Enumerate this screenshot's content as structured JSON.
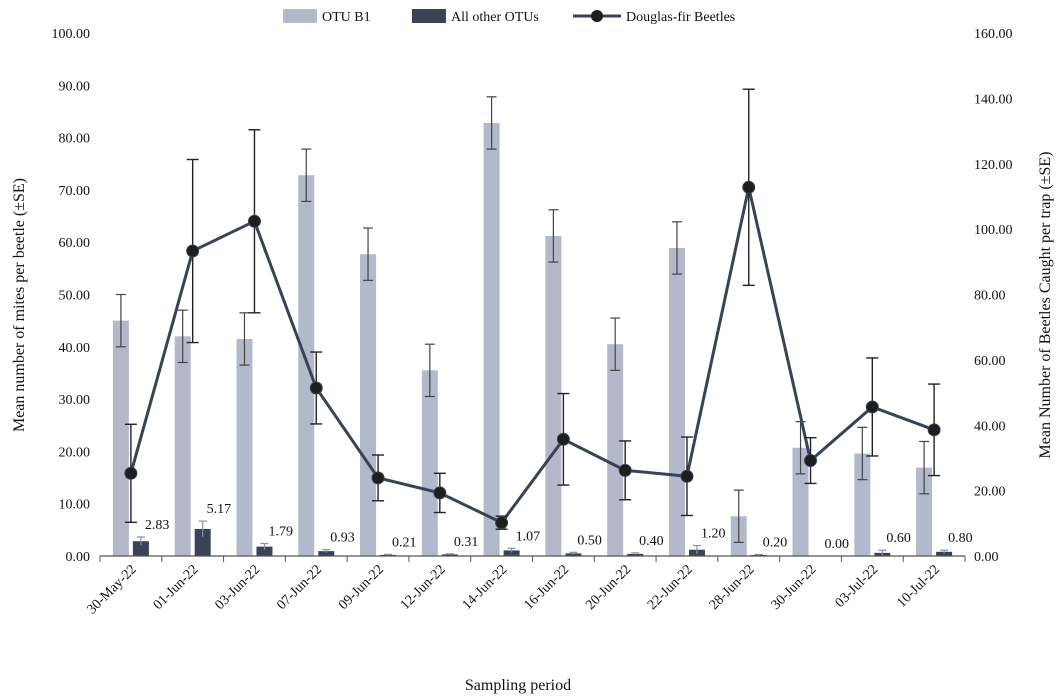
{
  "chart_data": {
    "type": "bar",
    "categories": [
      "30-May-22",
      "01-Jun-22",
      "03-Jun-22",
      "07-Jun-22",
      "09-Jun-22",
      "12-Jun-22",
      "14-Jun-22",
      "16-Jun-22",
      "20-Jun-22",
      "22-Jun-22",
      "28-Jun-22",
      "30-Jun-22",
      "03-Jul-22",
      "10-Jul-22"
    ],
    "xlabel": "Sampling period",
    "ylabel": "Mean number of mites per beetle (±SE)",
    "y2label": "Mean Number of Beetles Caught per trap (±SE)",
    "ylim": [
      0,
      100
    ],
    "y2lim": [
      0,
      160
    ],
    "yticks": [
      "0.00",
      "10.00",
      "20.00",
      "30.00",
      "40.00",
      "50.00",
      "60.00",
      "70.00",
      "80.00",
      "90.00",
      "100.00"
    ],
    "y2ticks": [
      "0.00",
      "20.00",
      "40.00",
      "60.00",
      "80.00",
      "100.00",
      "120.00",
      "140.00",
      "160.00"
    ],
    "grid": false,
    "legend_position": "top",
    "series": [
      {
        "name": "OTU B1",
        "type": "bar",
        "axis": "left",
        "color": "#b3b9cb",
        "values": [
          45.0,
          42.0,
          41.5,
          72.8,
          57.7,
          35.5,
          82.8,
          61.2,
          40.5,
          58.9,
          7.6,
          20.7,
          19.6,
          16.9
        ],
        "error": [
          5.0,
          5.0,
          5.0,
          5.0,
          5.0,
          5.0,
          5.0,
          5.0,
          5.0,
          5.0,
          5.0,
          5.0,
          5.0,
          5.0
        ]
      },
      {
        "name": "All other OTUs",
        "type": "bar",
        "axis": "left",
        "color": "#3a4255",
        "values": [
          2.83,
          5.17,
          1.79,
          0.93,
          0.21,
          0.31,
          1.07,
          0.5,
          0.4,
          1.2,
          0.2,
          0.0,
          0.6,
          0.8
        ],
        "labels": [
          "2.83",
          "5.17",
          "1.79",
          "0.93",
          "0.21",
          "0.31",
          "1.07",
          "0.50",
          "0.40",
          "1.20",
          "0.20",
          "0.00",
          "0.60",
          "0.80"
        ],
        "error": [
          0.8,
          1.5,
          0.6,
          0.3,
          0.1,
          0.1,
          0.4,
          0.2,
          0.2,
          0.8,
          0.1,
          0.0,
          0.5,
          0.3
        ]
      },
      {
        "name": "Douglas-fir Beetles",
        "type": "line",
        "axis": "right",
        "color": "#3a4255",
        "marker_color": "#1e1e1e",
        "values": [
          25.3,
          93.3,
          102.4,
          51.4,
          23.9,
          19.3,
          10.2,
          35.7,
          26.2,
          24.4,
          112.8,
          29.2,
          45.6,
          38.6
        ],
        "error": [
          15.0,
          28.0,
          28.0,
          11.0,
          7.0,
          6.0,
          2.0,
          14.0,
          9.0,
          12.0,
          30.0,
          7.0,
          15.0,
          14.0
        ]
      }
    ]
  }
}
